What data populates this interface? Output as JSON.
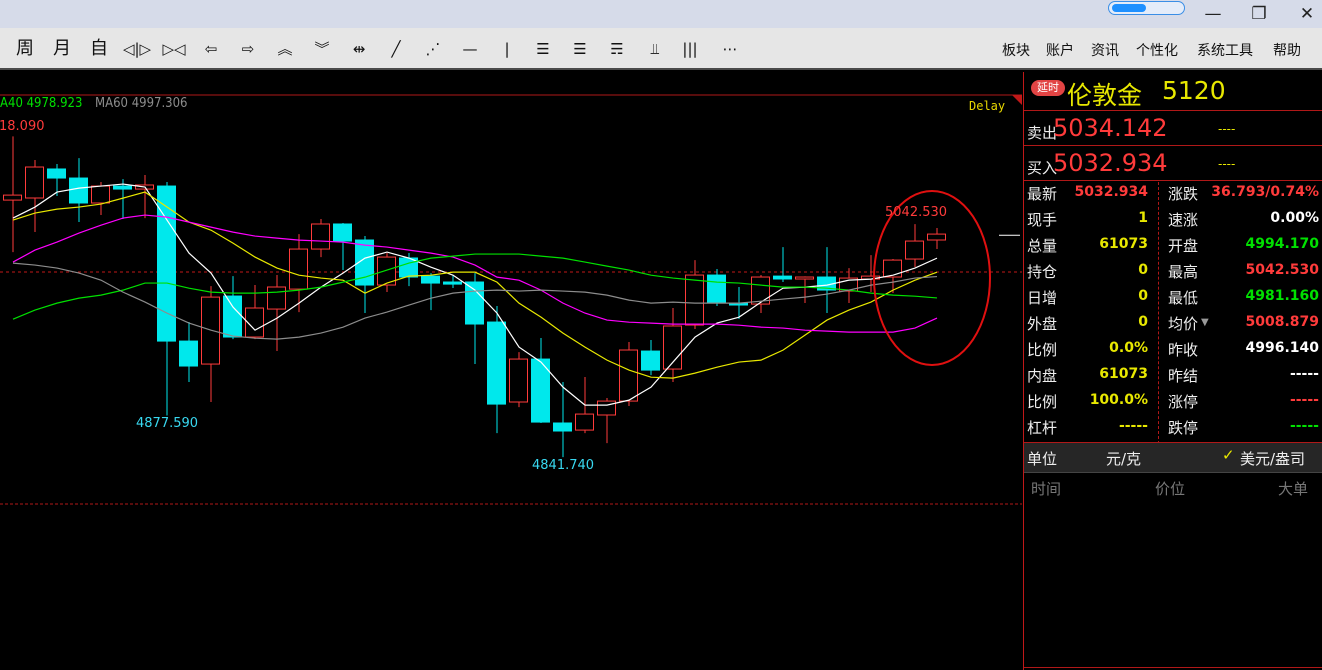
{
  "window": {
    "progress_fraction": 0.45,
    "minimize": "—",
    "maximize": "❐",
    "close": "✕"
  },
  "toolbar": {
    "items": [
      {
        "label": "周",
        "icon": "week-period"
      },
      {
        "label": "月",
        "icon": "month-period"
      },
      {
        "label": "自",
        "icon": "custom-period"
      },
      {
        "label": "◁|▷",
        "icon": "zoom-in-icon"
      },
      {
        "label": "▷◁",
        "icon": "zoom-out-icon"
      },
      {
        "label": "⇦",
        "icon": "arrow-left-icon"
      },
      {
        "label": "⇨",
        "icon": "arrow-right-icon"
      },
      {
        "label": "︽",
        "icon": "arrow-up-double-icon"
      },
      {
        "label": "︾",
        "icon": "arrow-down-double-icon"
      },
      {
        "label": "⇹",
        "icon": "expand-range-icon"
      },
      {
        "label": "╱",
        "icon": "line-draw-icon"
      },
      {
        "label": "⋰",
        "icon": "dashed-line-icon"
      },
      {
        "label": "—",
        "icon": "horizontal-line-icon"
      },
      {
        "label": "|",
        "icon": "vertical-line-icon"
      },
      {
        "label": "☰",
        "icon": "gold-ratio-icon"
      },
      {
        "label": "☰",
        "icon": "percent-lines-icon"
      },
      {
        "label": "☴",
        "icon": "fibonacci-icon"
      },
      {
        "label": "⫫",
        "icon": "measure-icon"
      },
      {
        "label": "|||",
        "icon": "cycle-lines-icon"
      },
      {
        "label": "⋯",
        "icon": "more-icon"
      }
    ],
    "menus": [
      "板块",
      "账户",
      "资讯",
      "个性化",
      "系统工具",
      "帮助"
    ]
  },
  "chart_data": {
    "type": "candlestick",
    "delay_label": "Delay",
    "legend": [
      {
        "name": "A40",
        "value": "4978.923",
        "color": "#00e000"
      },
      {
        "name": "MA60",
        "value": "4997.306",
        "color": "#8c8c8c"
      }
    ],
    "ylim": [
      4801.3,
      5152.9
    ],
    "reference_line": 5001.2,
    "annotations": [
      {
        "text": "18.090",
        "color": "#ff3b3b",
        "candle": 0
      },
      {
        "text": "4877.590",
        "color": "#38d8f0",
        "candle": 7
      },
      {
        "text": "4841.740",
        "color": "#38d8f0",
        "candle": 25
      },
      {
        "text": "5042.530",
        "color": "#ff3b3b",
        "candle": 41
      }
    ],
    "current_price": 5032.934,
    "up_color": "#ff3b3b",
    "down_color": "#00e8ec",
    "candles": [
      [
        5063.2,
        5067.5,
        5118.09,
        5018.4
      ],
      [
        5065.0,
        5091.7,
        5097.7,
        5035.7
      ],
      [
        5090.0,
        5082.2,
        5094.3,
        5066.7
      ],
      [
        5082.2,
        5060.7,
        5099.4,
        5044.3
      ],
      [
        5060.7,
        5075.3,
        5078.8,
        5050.3
      ],
      [
        5075.3,
        5072.7,
        5081.3,
        5046.9
      ],
      [
        5072.7,
        5076.2,
        5084.8,
        5047.7
      ],
      [
        5075.3,
        4941.7,
        5078.8,
        4877.59
      ],
      [
        4941.7,
        4920.2,
        4958.1,
        4906.4
      ],
      [
        4921.9,
        4979.6,
        4989.1,
        4889.2
      ],
      [
        4980.5,
        4945.2,
        4997.7,
        4943.4
      ],
      [
        4945.2,
        4970.2,
        4990.0,
        4943.4
      ],
      [
        4969.3,
        4988.3,
        4998.6,
        4933.1
      ],
      [
        4986.5,
        5021.0,
        5033.9,
        4966.7
      ],
      [
        5021.0,
        5042.6,
        5046.9,
        5014.1
      ],
      [
        5042.6,
        5027.9,
        5043.5,
        5002.9
      ],
      [
        5028.8,
        4990.0,
        5032.2,
        4965.9
      ],
      [
        4990.0,
        5014.1,
        5017.6,
        4984.0
      ],
      [
        5013.3,
        4996.9,
        5017.6,
        4989.1
      ],
      [
        4997.7,
        4991.7,
        5000.3,
        4968.4
      ],
      [
        4992.6,
        4990.8,
        4998.6,
        4987.4
      ],
      [
        4992.6,
        4956.4,
        5000.3,
        4921.9
      ],
      [
        4958.1,
        4887.4,
        4971.9,
        4862.4
      ],
      [
        4889.2,
        4926.2,
        4932.2,
        4884.8
      ],
      [
        4926.2,
        4871.9,
        4944.3,
        4871.1
      ],
      [
        4871.1,
        4864.2,
        4906.4,
        4841.74
      ],
      [
        4865.0,
        4878.8,
        4910.7,
        4862.4
      ],
      [
        4878.0,
        4890.0,
        4892.6,
        4853.8
      ],
      [
        4890.0,
        4934.0,
        4940.9,
        4885.7
      ],
      [
        4933.1,
        4916.7,
        4942.6,
        4912.4
      ],
      [
        4917.6,
        4954.7,
        4970.2,
        4906.4
      ],
      [
        4955.5,
        4998.6,
        5011.5,
        4952.1
      ],
      [
        4998.6,
        4975.3,
        5003.8,
        4971.9
      ],
      [
        4974.5,
        4972.8,
        4988.3,
        4960.7
      ],
      [
        4973.6,
        4996.9,
        4998.6,
        4965.9
      ],
      [
        4997.7,
        4995.2,
        5022.7,
        4992.6
      ],
      [
        4995.2,
        4996.9,
        4997.5,
        4974.5
      ],
      [
        4996.9,
        4985.7,
        5022.7,
        4965.9
      ],
      [
        4984.8,
        4996.0,
        5004.6,
        4974.5
      ],
      [
        4995.2,
        4997.7,
        5015.8,
        4984.0
      ],
      [
        4996.9,
        5011.5,
        5012.4,
        4983.1
      ],
      [
        5012.4,
        5027.9,
        5042.53,
        5005.5
      ],
      [
        5028.8,
        5033.9,
        5039.1,
        5021.0
      ]
    ],
    "series": [
      {
        "color": "#ffffff",
        "values": [
          5047.7,
          5057.2,
          5070.1,
          5073.5,
          5075.3,
          5077.0,
          5074.4,
          5046.0,
          5017.5,
          5000.3,
          4971.0,
          4951.1,
          4961.5,
          4974.4,
          4988.2,
          5000.3,
          5013.2,
          5018.4,
          5013.2,
          5005.4,
          4998.5,
          4985.6,
          4965.8,
          4936.5,
          4923.6,
          4902.0,
          4886.5,
          4886.5,
          4890.8,
          4902.0,
          4923.6,
          4945.1,
          4957.2,
          4962.3,
          4975.3,
          4987.3,
          4988.2,
          4989.9,
          4994.2,
          4995.1,
          4998.5,
          5004.6,
          5013.2
        ]
      },
      {
        "color": "#e8e800",
        "values": [
          5046.0,
          5052.0,
          5055.4,
          5057.2,
          5059.8,
          5064.9,
          5070.1,
          5057.2,
          5044.2,
          5037.3,
          5026.1,
          5014.1,
          5004.6,
          4998.5,
          4996.0,
          4994.2,
          4983.0,
          4991.7,
          4997.7,
          4998.5,
          5001.1,
          5001.1,
          4992.5,
          4974.4,
          4962.3,
          4948.6,
          4936.5,
          4925.3,
          4916.7,
          4910.6,
          4909.8,
          4914.1,
          4919.2,
          4923.6,
          4925.3,
          4933.9,
          4946.8,
          4959.8,
          4968.4,
          4975.3,
          4985.6,
          4994.2,
          5001.1
        ]
      },
      {
        "color": "#ff00ff",
        "values": [
          5009.8,
          5020.1,
          5027.0,
          5034.8,
          5041.6,
          5047.7,
          5050.3,
          5048.5,
          5044.2,
          5039.9,
          5035.6,
          5032.2,
          5030.4,
          5028.7,
          5027.9,
          5027.0,
          5024.4,
          5022.7,
          5020.1,
          5017.5,
          5014.1,
          5007.2,
          4996.8,
          4994.2,
          4985.6,
          4974.4,
          4965.8,
          4959.8,
          4958.0,
          4957.2,
          4956.3,
          4956.3,
          4956.3,
          4955.4,
          4953.7,
          4952.9,
          4951.1,
          4950.3,
          4949.4,
          4949.4,
          4949.4,
          4952.9,
          4961.5
        ]
      },
      {
        "name": "A40",
        "color": "#00e000",
        "values": [
          4960.6,
          4968.4,
          4974.4,
          4978.7,
          4981.3,
          4985.6,
          4991.7,
          4991.7,
          4987.3,
          4983.9,
          4983.0,
          4983.0,
          4983.9,
          4985.6,
          4988.2,
          4992.5,
          4996.8,
          5002.9,
          5008.9,
          5013.2,
          5014.9,
          5016.7,
          5016.7,
          5016.7,
          5014.9,
          5013.2,
          5009.8,
          5006.3,
          5002.9,
          4998.5,
          4996.0,
          4994.2,
          4992.5,
          4991.7,
          4989.9,
          4988.2,
          4988.2,
          4987.3,
          4985.6,
          4983.0,
          4981.3,
          4980.4,
          4978.9
        ]
      },
      {
        "name": "MA60",
        "color": "#8c8c8c",
        "values": [
          5008.9,
          5007.2,
          5004.6,
          5000.3,
          4994.2,
          4983.9,
          4975.3,
          4965.8,
          4957.2,
          4951.1,
          4946.0,
          4944.2,
          4943.4,
          4945.1,
          4948.6,
          4953.7,
          4961.5,
          4966.7,
          4972.7,
          4978.7,
          4983.0,
          4984.8,
          4985.6,
          4984.8,
          4985.6,
          4984.8,
          4983.9,
          4981.3,
          4977.0,
          4974.4,
          4975.3,
          4974.4,
          4974.4,
          4974.4,
          4976.1,
          4977.9,
          4979.6,
          4982.2,
          4985.6,
          4989.9,
          4992.5,
          4996.0,
          4997.3
        ]
      }
    ]
  },
  "quote": {
    "badge": "延时",
    "name": "伦敦金",
    "code": "5120",
    "sell_label": "卖出",
    "sell_price": "5034.142",
    "sell_vol": "----",
    "buy_label": "买入",
    "buy_price": "5032.934",
    "buy_vol": "----",
    "left": [
      {
        "label": "最新",
        "value": "5032.934",
        "color": "#ff3b3b"
      },
      {
        "label": "现手",
        "value": "1",
        "color": "#e8e800"
      },
      {
        "label": "总量",
        "value": "61073",
        "color": "#e8e800"
      },
      {
        "label": "持仓",
        "value": "0",
        "color": "#e8e800"
      },
      {
        "label": "日增",
        "value": "0",
        "color": "#e8e800"
      },
      {
        "label": "外盘",
        "value": "0",
        "color": "#e8e800"
      },
      {
        "label": "比例",
        "value": "0.0%",
        "color": "#e8e800"
      },
      {
        "label": "内盘",
        "value": "61073",
        "color": "#e8e800"
      },
      {
        "label": "比例",
        "value": "100.0%",
        "color": "#e8e800"
      },
      {
        "label": "杠杆",
        "value": "-----",
        "color": "#e8e800"
      }
    ],
    "right": [
      {
        "label": "涨跌",
        "value": "36.793/0.74%",
        "color": "#ff3b3b"
      },
      {
        "label": "速涨",
        "value": "0.00%",
        "color": "#ffffff"
      },
      {
        "label": "开盘",
        "value": "4994.170",
        "color": "#00e000"
      },
      {
        "label": "最高",
        "value": "5042.530",
        "color": "#ff3b3b"
      },
      {
        "label": "最低",
        "value": "4981.160",
        "color": "#00e000"
      },
      {
        "label": "均价",
        "value": "5008.879",
        "color": "#ff3b3b"
      },
      {
        "label": "昨收",
        "value": "4996.140",
        "color": "#ffffff"
      },
      {
        "label": "昨结",
        "value": "-----",
        "color": "#ffffff"
      },
      {
        "label": "涨停",
        "value": "-----",
        "color": "#ff3b3b"
      },
      {
        "label": "跌停",
        "value": "-----",
        "color": "#00e000"
      }
    ],
    "unit_label": "单位",
    "unit_option1": "元/克",
    "unit_option2": "美元/盎司",
    "unit_selected": "美元/盎司",
    "trade_headers": [
      "时间",
      "价位",
      "大单"
    ]
  }
}
